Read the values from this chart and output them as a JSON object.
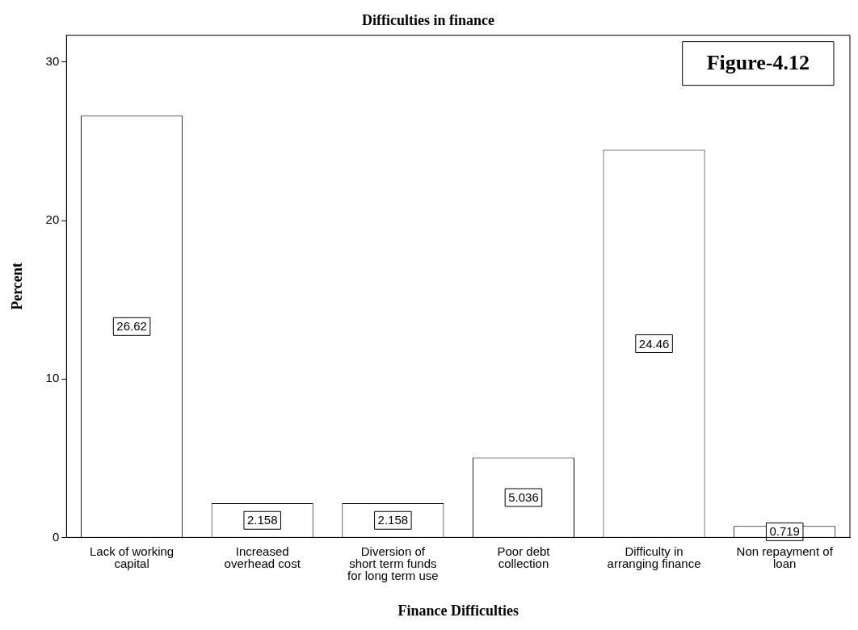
{
  "chart_data": {
    "type": "bar",
    "title": "Difficulties in finance",
    "xlabel": "Finance Difficulties",
    "ylabel": "Percent",
    "categories": [
      "Lack of working capital",
      "Increased overhead cost",
      "Diversion of short term funds for long term use",
      "Poor debt collection",
      "Difficulty in arranging finance",
      "Non repayment of loan"
    ],
    "values": [
      26.62,
      2.158,
      2.158,
      5.036,
      24.46,
      0.719
    ],
    "color": "#ffffff",
    "ylim": [
      0,
      31.7
    ],
    "yticks": [
      0,
      10,
      20,
      30
    ],
    "grid": false,
    "legend": false,
    "data_labels": true,
    "annotations": [
      "Figure-4.12"
    ]
  }
}
